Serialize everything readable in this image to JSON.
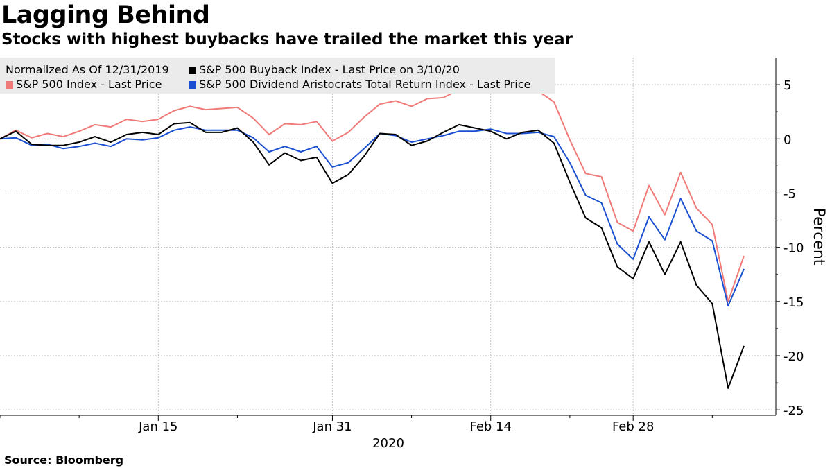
{
  "title": "Lagging Behind",
  "subtitle": "Stocks with highest buybacks have trailed the market this year",
  "source": "Source: Bloomberg",
  "legend": {
    "note": "Normalized As Of 12/31/2019",
    "items": [
      {
        "label": "S&P 500 Buyback Index - Last Price on 3/10/20",
        "color": "#000000"
      },
      {
        "label": "S&P 500 Index - Last Price",
        "color": "#f07a78"
      },
      {
        "label": "S&P 500 Dividend Aristocrats Total Return Index - Last Price",
        "color": "#1a4fd1"
      }
    ]
  },
  "chart_data": {
    "type": "line",
    "ylabel": "Percent",
    "xlabel": "2020",
    "ylim": [
      -25.5,
      7.5
    ],
    "yticks": [
      5,
      0,
      -5,
      -10,
      -15,
      -20,
      -25
    ],
    "x_tick_labels": [
      "Jan 15",
      "Jan 31",
      "Feb 14",
      "Feb 28"
    ],
    "x_tick_label_index": [
      10,
      21,
      31,
      40
    ],
    "grid": true,
    "legend_position": "top-left",
    "x": [
      "2019-12-31",
      "2020-01-02",
      "2020-01-03",
      "2020-01-06",
      "2020-01-07",
      "2020-01-08",
      "2020-01-09",
      "2020-01-10",
      "2020-01-13",
      "2020-01-14",
      "2020-01-15",
      "2020-01-16",
      "2020-01-17",
      "2020-01-21",
      "2020-01-22",
      "2020-01-23",
      "2020-01-24",
      "2020-01-27",
      "2020-01-28",
      "2020-01-29",
      "2020-01-30",
      "2020-01-31",
      "2020-02-03",
      "2020-02-04",
      "2020-02-05",
      "2020-02-06",
      "2020-02-07",
      "2020-02-10",
      "2020-02-11",
      "2020-02-12",
      "2020-02-13",
      "2020-02-14",
      "2020-02-18",
      "2020-02-19",
      "2020-02-20",
      "2020-02-21",
      "2020-02-24",
      "2020-02-25",
      "2020-02-26",
      "2020-02-27",
      "2020-02-28",
      "2020-03-02",
      "2020-03-03",
      "2020-03-04",
      "2020-03-05",
      "2020-03-06",
      "2020-03-09",
      "2020-03-10"
    ],
    "series": [
      {
        "name": "S&P 500 Buyback Index - Last Price on 3/10/20",
        "color": "#000000",
        "values": [
          0,
          0.7,
          -0.5,
          -0.6,
          -0.6,
          -0.3,
          0.2,
          -0.3,
          0.4,
          0.6,
          0.4,
          1.4,
          1.5,
          0.6,
          0.6,
          1.0,
          -0.3,
          -2.4,
          -1.3,
          -2.0,
          -1.7,
          -4.1,
          -3.3,
          -1.6,
          0.5,
          0.4,
          -0.6,
          -0.2,
          0.6,
          1.3,
          1.0,
          0.7,
          0.0,
          0.6,
          0.8,
          -0.4,
          -4.0,
          -7.3,
          -8.2,
          -11.8,
          -12.9,
          -9.5,
          -12.5,
          -9.5,
          -13.5,
          -15.2,
          -23.0,
          -19.1
        ]
      },
      {
        "name": "S&P 500 Index - Last Price",
        "color": "#f07a78",
        "values": [
          0,
          0.8,
          0.1,
          0.5,
          0.2,
          0.7,
          1.3,
          1.1,
          1.8,
          1.6,
          1.8,
          2.6,
          3.0,
          2.7,
          2.8,
          2.9,
          1.9,
          0.4,
          1.4,
          1.3,
          1.6,
          -0.2,
          0.6,
          2.0,
          3.2,
          3.5,
          3.0,
          3.7,
          3.8,
          4.5,
          4.5,
          4.6,
          4.3,
          4.8,
          4.4,
          3.4,
          -0.1,
          -3.2,
          -3.5,
          -7.7,
          -8.5,
          -4.3,
          -7.0,
          -3.1,
          -6.4,
          -7.9,
          -15.0,
          -10.8
        ]
      },
      {
        "name": "S&P 500 Dividend Aristocrats Total Return Index - Last Price",
        "color": "#1a4fd1",
        "values": [
          0,
          0.1,
          -0.6,
          -0.5,
          -0.9,
          -0.7,
          -0.4,
          -0.7,
          0.0,
          -0.1,
          0.1,
          0.8,
          1.1,
          0.8,
          0.8,
          0.8,
          0.1,
          -1.2,
          -0.7,
          -1.2,
          -0.7,
          -2.6,
          -2.2,
          -0.9,
          0.5,
          0.3,
          -0.3,
          0.0,
          0.3,
          0.7,
          0.7,
          0.9,
          0.5,
          0.5,
          0.6,
          0.2,
          -2.2,
          -5.2,
          -5.9,
          -9.7,
          -11.1,
          -7.2,
          -9.3,
          -5.5,
          -8.5,
          -9.4,
          -15.4,
          -12.0
        ]
      }
    ]
  }
}
